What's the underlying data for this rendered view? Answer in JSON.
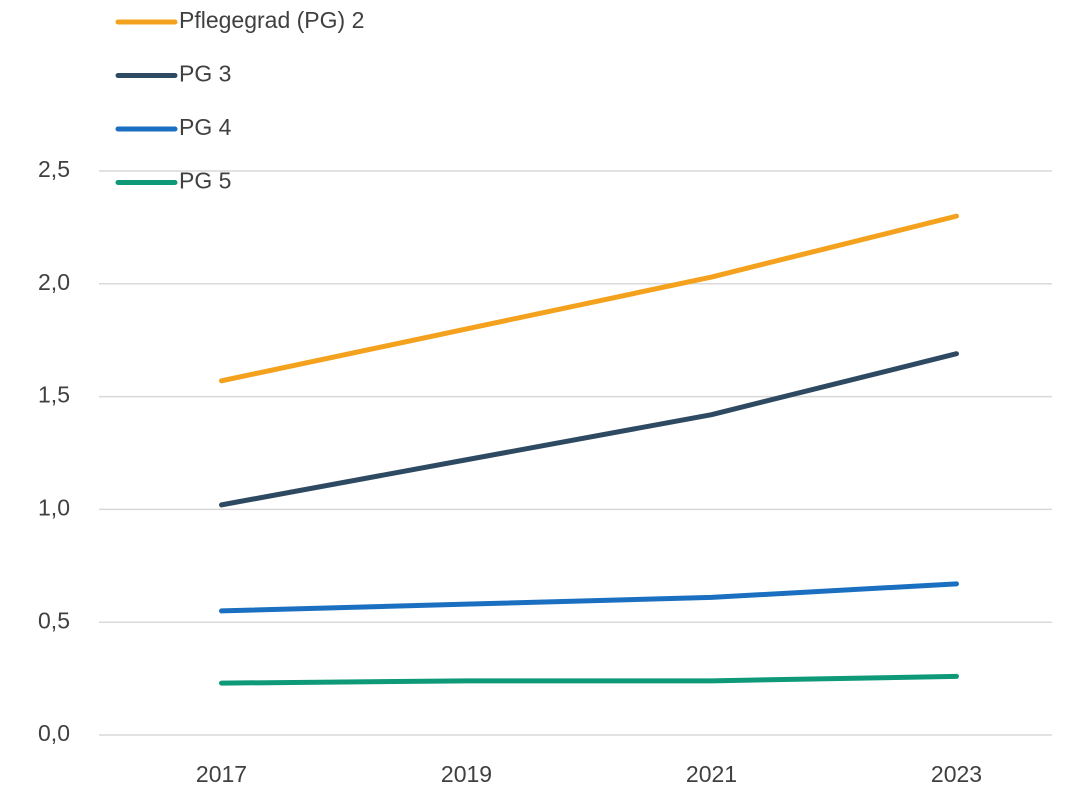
{
  "chart_data": {
    "type": "line",
    "categories": [
      "2017",
      "2019",
      "2021",
      "2023"
    ],
    "series": [
      {
        "name": "Pflegegrad (PG) 2",
        "color": "#f4a11d",
        "values": [
          1.57,
          1.8,
          2.03,
          2.3
        ]
      },
      {
        "name": "PG 3",
        "color": "#2e4a62",
        "values": [
          1.02,
          1.22,
          1.42,
          1.69
        ]
      },
      {
        "name": "PG 4",
        "color": "#1a6fc0",
        "values": [
          0.55,
          0.58,
          0.61,
          0.67
        ]
      },
      {
        "name": "PG 5",
        "color": "#0e9a78",
        "values": [
          0.23,
          0.24,
          0.24,
          0.26
        ]
      }
    ],
    "ylim": [
      0,
      2.5
    ],
    "yticks": [
      {
        "value": 0,
        "label": "0,0"
      },
      {
        "value": 0.5,
        "label": "0,5"
      },
      {
        "value": 1,
        "label": "1,0"
      },
      {
        "value": 1.5,
        "label": "1,5"
      },
      {
        "value": 2,
        "label": "2,0"
      },
      {
        "value": 2.5,
        "label": "2,5"
      }
    ],
    "grid": true,
    "legend": "top-left"
  }
}
